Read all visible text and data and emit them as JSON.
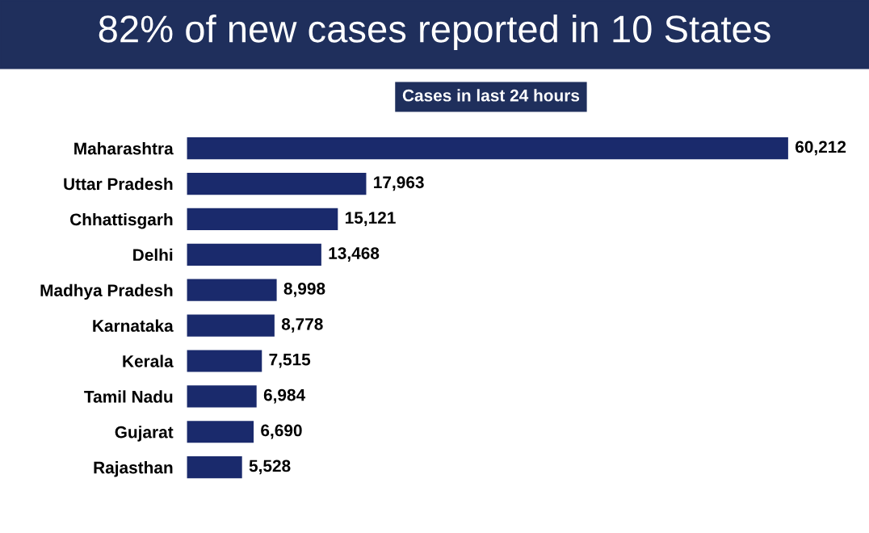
{
  "chart_data": {
    "type": "bar",
    "orientation": "horizontal",
    "title": "82% of new cases reported in 10 States",
    "subtitle": "Cases in last 24 hours",
    "categories": [
      "Maharashtra",
      "Uttar Pradesh",
      "Chhattisgarh",
      "Delhi",
      "Madhya Pradesh",
      "Karnataka",
      "Kerala",
      "Tamil Nadu",
      "Gujarat",
      "Rajasthan"
    ],
    "values": [
      60212,
      17963,
      15121,
      13468,
      8998,
      8778,
      7515,
      6984,
      6690,
      5528
    ],
    "value_labels": [
      "60,212",
      "17,963",
      "15,121",
      "13,468",
      "8,998",
      "8,778",
      "7,515",
      "6,984",
      "6,690",
      "5,528"
    ],
    "color": "#1a2a6c",
    "tick_labels": "y",
    "grid": false,
    "legend": false
  }
}
